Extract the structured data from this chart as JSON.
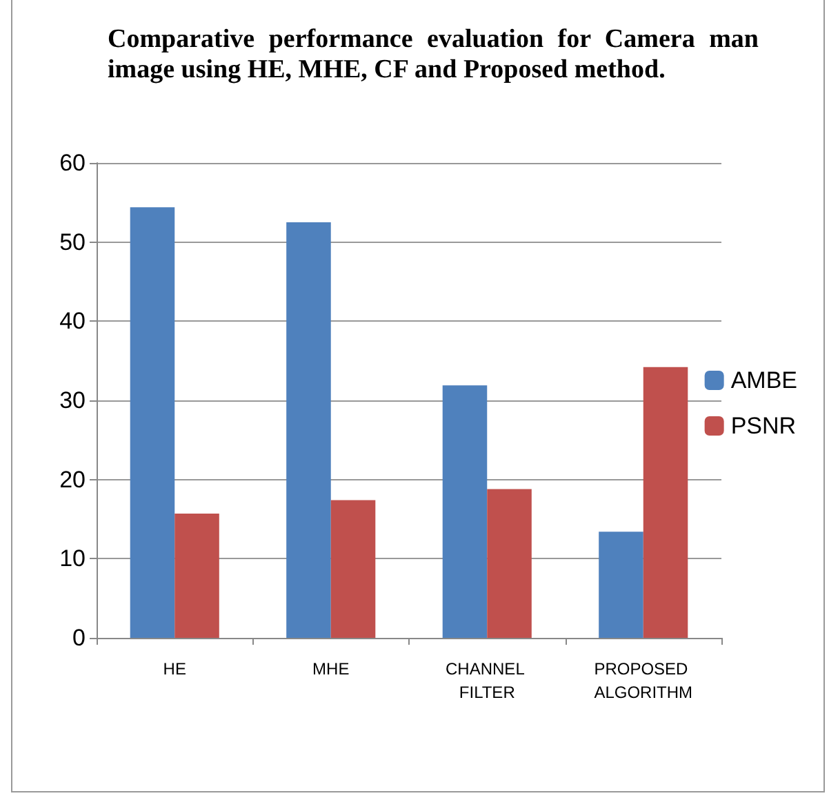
{
  "chart_data": {
    "type": "bar",
    "title": "Comparative performance evaluation for Camera man image using HE, MHE, CF and Proposed method.",
    "categories": [
      "HE",
      "MHE",
      "CHANNEL FILTER",
      "PROPOSED ALGORITHM"
    ],
    "series": [
      {
        "name": "AMBE",
        "color": "#4f81bd",
        "values": [
          54.4,
          52.5,
          31.9,
          13.4
        ]
      },
      {
        "name": "PSNR",
        "color": "#c0504d",
        "values": [
          15.7,
          17.4,
          18.8,
          34.2
        ]
      }
    ],
    "ylim": [
      0,
      60
    ],
    "yticks": [
      0,
      10,
      20,
      30,
      40,
      50,
      60
    ],
    "grid": "y",
    "legend": "right"
  }
}
